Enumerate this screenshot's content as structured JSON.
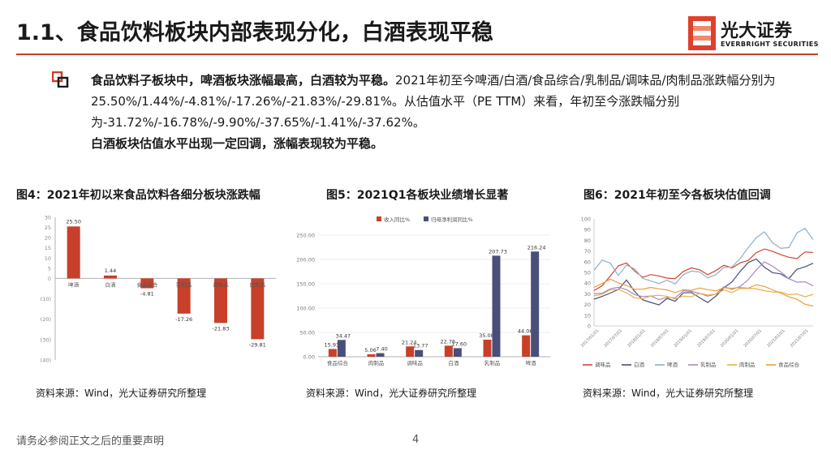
{
  "header": {
    "title": "1.1、食品饮料板块内部表现分化，白酒表现平稳",
    "logo_cn": "光大证券",
    "logo_en": "EVERBRIGHT SECURITIES"
  },
  "bullet": {
    "bold1": "食品饮料子板块中，啤酒板块涨幅最高，白酒较为平稳。",
    "normal1": "2021年初至今啤酒/白酒/食品综合/乳制品/调味品/肉制品涨跌幅分别为25.50%/1.44%/-4.81%/-17.26%/-21.83%/-29.81%。从估值水平（PE TTM）来看，年初至今涨跌幅分别为-31.72%/-16.78%/-9.90%/-37.65%/-1.41%/-37.62%。",
    "bold2": "白酒板块估值水平出现一定回调，涨幅表现较为平稳。"
  },
  "figures": {
    "fig4_title": "图4：2021年初以来食品饮料各细分板块涨跌幅",
    "fig5_title": "图5：2021Q1各板块业绩增长显著",
    "fig6_title": "图6：2021年初至今各板块估值回调",
    "source": "资料来源：Wind，光大证券研究所整理"
  },
  "footer": {
    "note": "请务必参阅正文之后的重要声明",
    "page": "4"
  },
  "colors": {
    "accent": "#c8402a",
    "navy": "#4a4f7a"
  },
  "chart_data": [
    {
      "type": "bar",
      "categories": [
        "啤酒",
        "白酒",
        "食品综合",
        "乳制品",
        "调味品",
        "肉制品"
      ],
      "values": [
        25.5,
        1.44,
        -4.81,
        -17.26,
        -21.83,
        -29.81
      ],
      "data_labels": [
        "25.50",
        "1.44",
        "-4.81",
        "-17.26",
        "-21.83",
        "-29.81"
      ],
      "ylim": [
        -40,
        30
      ],
      "yticks": [
        30,
        25,
        20,
        15,
        10,
        5,
        0,
        -10,
        -20,
        -30,
        -40
      ],
      "ytick_labels": [
        "30",
        "25",
        "20",
        "15",
        "10",
        "5",
        "0",
        "(10)",
        "(20)",
        "(30)",
        "(40)"
      ],
      "color": "#c8402a"
    },
    {
      "type": "bar",
      "categories": [
        "食品综合",
        "肉制品",
        "调味品",
        "白酒",
        "乳制品",
        "啤酒"
      ],
      "series": [
        {
          "name": "收入同比%",
          "values": [
            15.93,
            5.06,
            21.24,
            22.76,
            35.08,
            44.06
          ],
          "labels": [
            "15.93",
            "5.06",
            "21.24",
            "22.76",
            "35.08",
            "44.06"
          ],
          "color": "#c8402a"
        },
        {
          "name": "归母净利润同比%",
          "values": [
            34.47,
            7.4,
            13.77,
            17.6,
            207.73,
            216.24
          ],
          "labels": [
            "34.47",
            "7.40",
            "13.77",
            "17.60",
            "207.73",
            "216.24"
          ],
          "color": "#4a4f7a"
        }
      ],
      "ylim": [
        0,
        250
      ],
      "yticks": [
        0,
        50,
        100,
        150,
        200,
        250
      ],
      "ytick_labels": [
        "0.00",
        "50.00",
        "100.00",
        "150.00",
        "200.00",
        "250.00"
      ],
      "legend": "top"
    },
    {
      "type": "line",
      "x_labels": [
        "2017/01/01",
        "2017/07/01",
        "2018/01/01",
        "2018/07/01",
        "2019/01/01",
        "2019/07/01",
        "2020/01/01",
        "2020/07/01",
        "2021/01/01",
        "2021/07/01"
      ],
      "ylim": [
        0,
        100
      ],
      "yticks": [
        0,
        10,
        20,
        30,
        40,
        50,
        60,
        70,
        80,
        90,
        100
      ],
      "legend": "bottom",
      "series": [
        {
          "name": "调味品",
          "color": "#d2452e",
          "values": [
            33,
            38,
            46,
            57,
            58,
            52,
            45,
            48,
            47,
            44,
            45,
            50,
            55,
            52,
            48,
            52,
            56,
            55,
            58,
            62,
            68,
            72,
            70,
            66,
            65,
            62,
            70,
            68
          ]
        },
        {
          "name": "白酒",
          "color": "#4a4f7a",
          "values": [
            25,
            28,
            30,
            35,
            42,
            33,
            24,
            22,
            20,
            25,
            24,
            30,
            32,
            26,
            22,
            28,
            35,
            42,
            50,
            60,
            62,
            55,
            50,
            48,
            45,
            52,
            56,
            58
          ]
        },
        {
          "name": "啤酒",
          "color": "#8fb0c8",
          "values": [
            52,
            62,
            58,
            48,
            56,
            54,
            44,
            42,
            40,
            42,
            40,
            47,
            52,
            50,
            45,
            48,
            54,
            56,
            62,
            74,
            82,
            88,
            78,
            72,
            74,
            86,
            92,
            80
          ]
        },
        {
          "name": "乳制品",
          "color": "#a78abd",
          "values": [
            30,
            31,
            34,
            37,
            33,
            30,
            27,
            28,
            25,
            26,
            27,
            32,
            33,
            30,
            28,
            30,
            36,
            35,
            36,
            44,
            52,
            60,
            56,
            50,
            45,
            40,
            42,
            37
          ]
        },
        {
          "name": "肉制品",
          "color": "#e8b14a",
          "values": [
            28,
            30,
            33,
            35,
            30,
            27,
            25,
            28,
            29,
            27,
            26,
            27,
            28,
            30,
            29,
            30,
            33,
            32,
            34,
            36,
            34,
            33,
            32,
            31,
            30,
            29,
            28,
            29
          ]
        },
        {
          "name": "食品综合",
          "color": "#ef9a3c",
          "values": [
            36,
            40,
            43,
            41,
            37,
            35,
            34,
            36,
            35,
            33,
            32,
            33,
            34,
            35,
            34,
            33,
            35,
            36,
            35,
            36,
            38,
            37,
            34,
            30,
            28,
            24,
            21,
            18
          ]
        }
      ]
    }
  ]
}
